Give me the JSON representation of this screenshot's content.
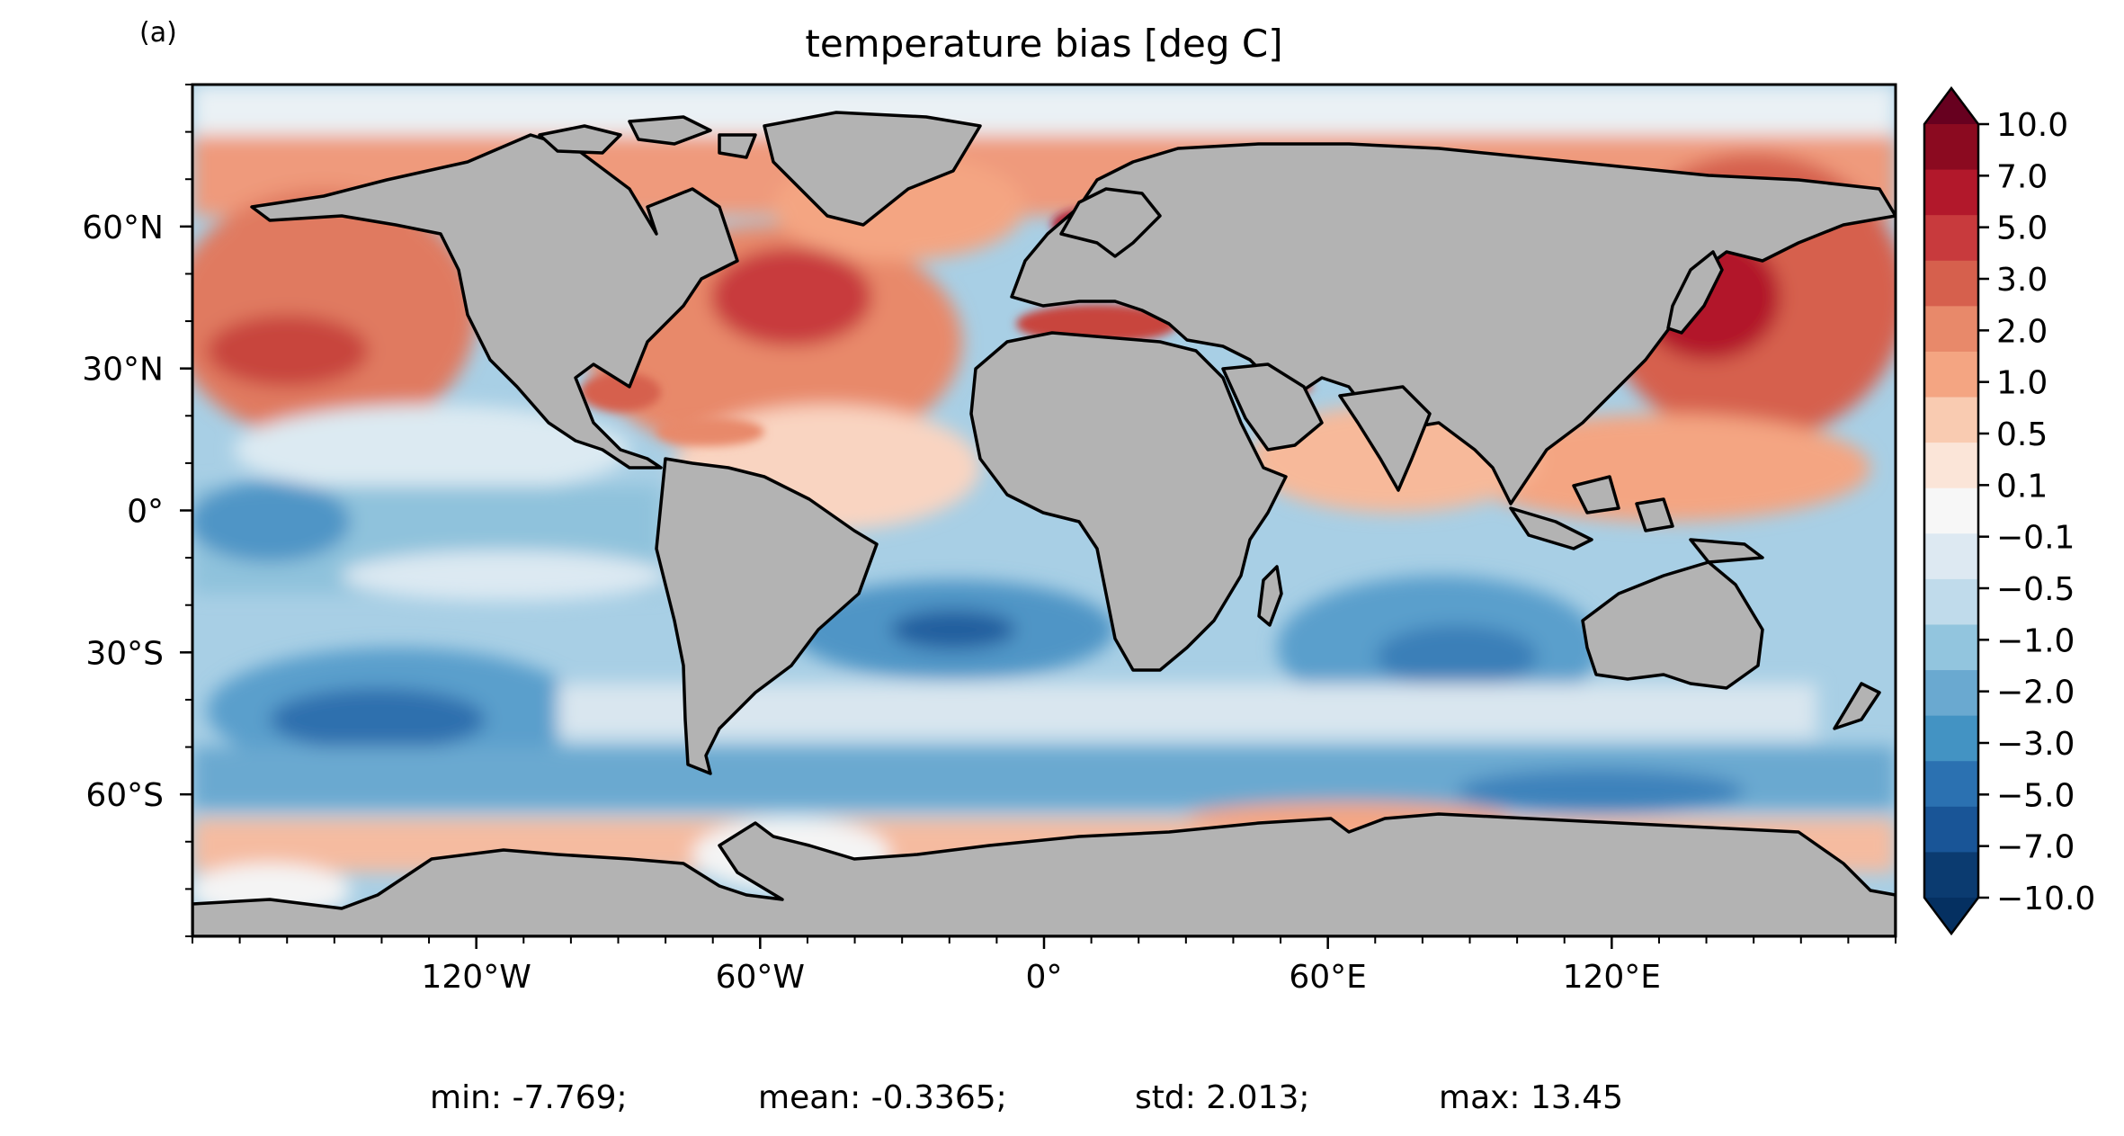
{
  "panel_label": "(a)",
  "title": "temperature bias [deg C]",
  "stats": {
    "min": "min: -7.769;",
    "mean": "mean: -0.3365;",
    "std": "std: 2.013;",
    "max": "max: 13.45"
  },
  "map": {
    "projection": "PlateCarree",
    "lon_range": [
      -180,
      180
    ],
    "lat_range": [
      -90,
      90
    ],
    "x_ticks": [
      {
        "lon": -120,
        "label": "120°W"
      },
      {
        "lon": -60,
        "label": "60°W"
      },
      {
        "lon": 0,
        "label": "0°"
      },
      {
        "lon": 60,
        "label": "60°E"
      },
      {
        "lon": 120,
        "label": "120°E"
      }
    ],
    "y_ticks": [
      {
        "lat": 60,
        "label": "60°N"
      },
      {
        "lat": 30,
        "label": "30°N"
      },
      {
        "lat": 0,
        "label": "0°"
      },
      {
        "lat": -30,
        "label": "30°S"
      },
      {
        "lat": -60,
        "label": "60°S"
      }
    ],
    "land_color": "#b3b3b3",
    "coast_color": "#000000"
  },
  "colorbar": {
    "levels": [
      "10.0",
      "7.0",
      "5.0",
      "3.0",
      "2.0",
      "1.0",
      "0.5",
      "0.1",
      "−0.1",
      "−0.5",
      "−1.0",
      "−2.0",
      "−3.0",
      "−5.0",
      "−7.0",
      "−10.0"
    ],
    "colors": [
      "#8b0a20",
      "#b2182b",
      "#c83a3d",
      "#d6604d",
      "#e8896a",
      "#f4a582",
      "#f9cbb1",
      "#fbe5d8",
      "#f7f7f7",
      "#dde9f2",
      "#c0dbeb",
      "#92c5de",
      "#6aa9d0",
      "#4393c3",
      "#2b71b1",
      "#195597",
      "#0b3b70"
    ],
    "extend": "both",
    "over_color": "#67001f",
    "under_color": "#053061"
  }
}
